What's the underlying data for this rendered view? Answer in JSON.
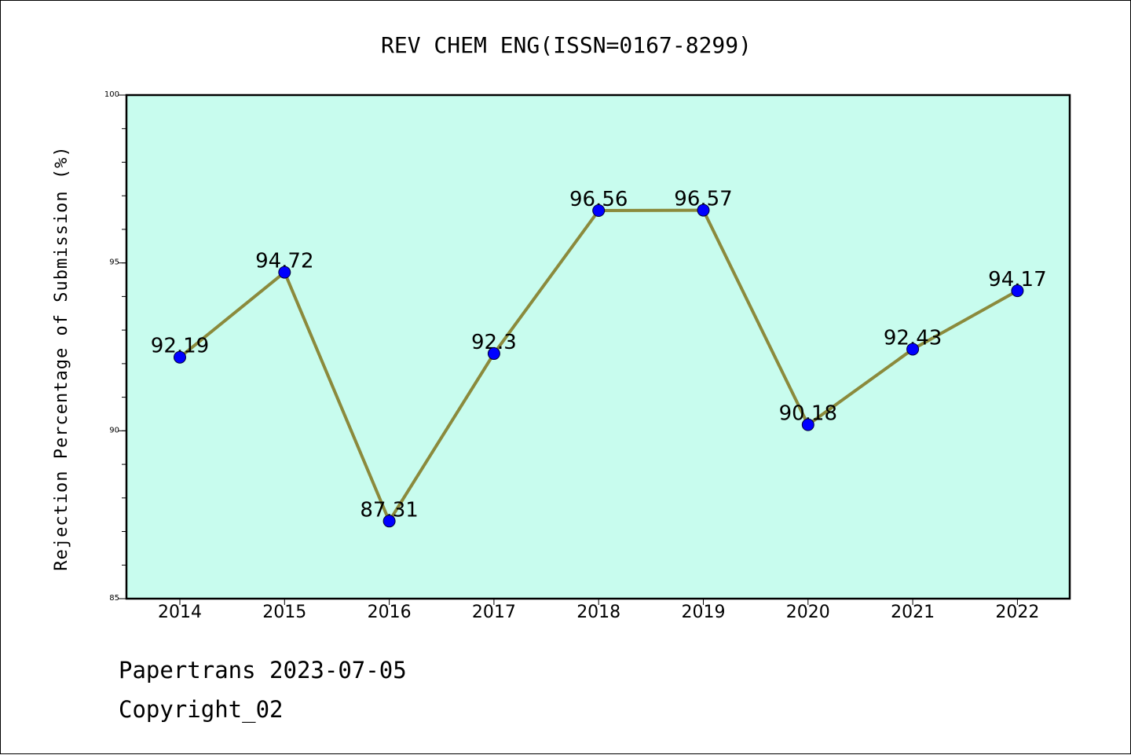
{
  "footer": {
    "line1": "Papertrans 2023-07-05",
    "line2": "Copyright_02"
  },
  "chart_data": {
    "type": "line",
    "title": "REV CHEM ENG(ISSN=0167-8299)",
    "ylabel": "Rejection Percentage of Submission (%)",
    "xlabel": "",
    "categories": [
      "2014",
      "2015",
      "2016",
      "2017",
      "2018",
      "2019",
      "2020",
      "2021",
      "2022"
    ],
    "values": [
      92.19,
      94.72,
      87.31,
      92.3,
      96.56,
      96.57,
      90.18,
      92.43,
      94.17
    ],
    "data_labels": [
      "92.19",
      "94.72",
      "87.31",
      "92.3",
      "96.56",
      "96.57",
      "90.18",
      "92.43",
      "94.17"
    ],
    "ylim": [
      85,
      100
    ],
    "yticks": [
      85,
      90,
      95,
      100
    ],
    "yminor_step": 1,
    "grid": false,
    "legend": "none",
    "colors": {
      "plot_background": "#c8fcee",
      "line": "#8b8a3c",
      "marker": "#0000ff",
      "axes": "#000000"
    }
  }
}
